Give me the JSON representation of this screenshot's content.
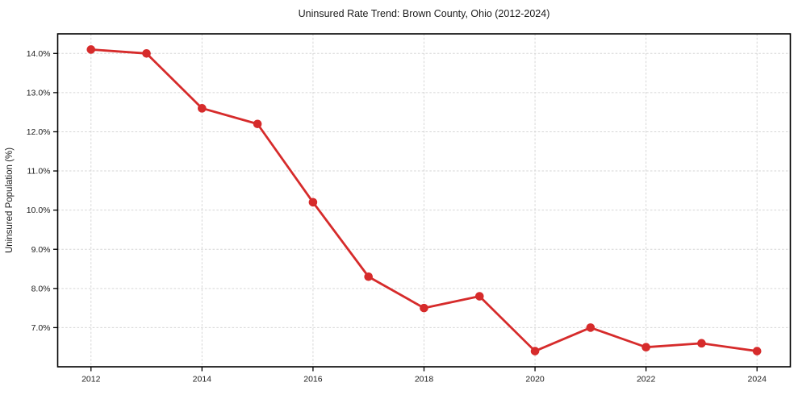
{
  "page": {
    "background": "#ffffff"
  },
  "chart_data": {
    "type": "line",
    "title": "Uninsured Rate Trend: Brown County, Ohio (2012-2024)",
    "xlabel": "",
    "ylabel": "Uninsured Population (%)",
    "x": [
      2012,
      2013,
      2014,
      2015,
      2016,
      2017,
      2018,
      2019,
      2020,
      2021,
      2022,
      2023,
      2024
    ],
    "series": [
      {
        "values": [
          14.1,
          14.0,
          12.6,
          12.2,
          10.2,
          8.3,
          7.5,
          7.8,
          6.4,
          7.0,
          6.5,
          6.6,
          6.4
        ],
        "color": "#d62b2b",
        "marker": "circle",
        "line_width": 2.8,
        "marker_radius": 5.3
      }
    ],
    "xlim": [
      2011.4,
      2024.6
    ],
    "ylim": [
      6.0,
      14.5
    ],
    "xticks": [
      {
        "value": 2012,
        "label": "2012"
      },
      {
        "value": 2014,
        "label": "2014"
      },
      {
        "value": 2016,
        "label": "2016"
      },
      {
        "value": 2018,
        "label": "2018"
      },
      {
        "value": 2020,
        "label": "2020"
      },
      {
        "value": 2022,
        "label": "2022"
      },
      {
        "value": 2024,
        "label": "2024"
      }
    ],
    "yticks": [
      {
        "value": 7.0,
        "label": "7.0%"
      },
      {
        "value": 8.0,
        "label": "8.0%"
      },
      {
        "value": 9.0,
        "label": "9.0%"
      },
      {
        "value": 10.0,
        "label": "10.0%"
      },
      {
        "value": 11.0,
        "label": "11.0%"
      },
      {
        "value": 12.0,
        "label": "12.0%"
      },
      {
        "value": 13.0,
        "label": "13.0%"
      },
      {
        "value": 14.0,
        "label": "14.0%"
      }
    ],
    "grid": true,
    "grid_style": "dashed",
    "legend": false
  },
  "style": {
    "grid_color": "#d6d6d6",
    "spine_color": "#000000",
    "tick_color": "#000000",
    "text_color": "#1c1c1c"
  }
}
